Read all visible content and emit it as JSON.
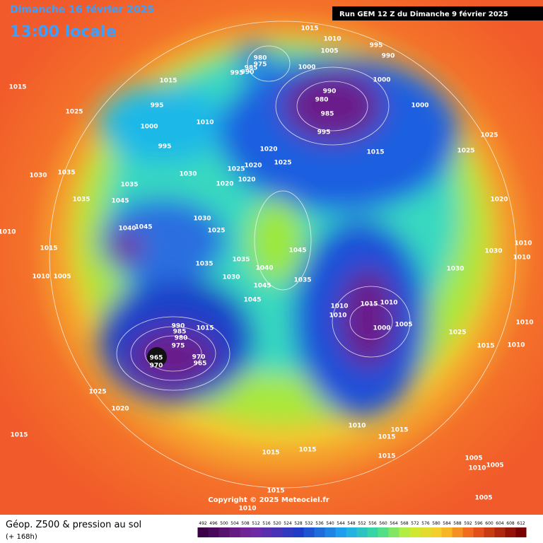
{
  "header": {
    "date": "Dimanche 16 février 2025",
    "time": "13:00 locale",
    "run": "Run GEM 12 Z du Dimanche 9 février 2025"
  },
  "footer": {
    "title": "Géop. Z500 & pression au sol",
    "lead": "(+ 168h)",
    "copyright": "Copyright © 2025 Meteociel.fr"
  },
  "scale": [
    492,
    496,
    500,
    504,
    508,
    512,
    516,
    520,
    524,
    528,
    532,
    536,
    540,
    544,
    548,
    552,
    556,
    560,
    564,
    568,
    572,
    576,
    580,
    584,
    588,
    592,
    596,
    600,
    604,
    608,
    612
  ],
  "isobar_labels": [
    1015,
    1010,
    1005,
    995,
    990,
    1015,
    1015,
    980,
    975,
    985,
    990,
    995,
    1000,
    1000,
    990,
    980,
    985,
    995,
    1000,
    1025,
    995,
    1000,
    1010,
    995,
    1025,
    1015,
    1025,
    1020,
    1025,
    1020,
    1025,
    1020,
    1030,
    1035,
    1030,
    1035,
    1020,
    1035,
    1045,
    1020,
    1030,
    1040,
    1045,
    1025,
    1010,
    1015,
    1010,
    1030,
    1045,
    1010,
    1035,
    1035,
    1040,
    1030,
    1010,
    1005,
    1030,
    1035,
    1045,
    1045,
    1010,
    1015,
    1010,
    1010,
    1005,
    1010,
    1000,
    990,
    985,
    1015,
    980,
    975,
    1025,
    970,
    965,
    970,
    965,
    1015,
    1010,
    1025,
    1020,
    1010,
    1015,
    1015,
    1015,
    1015,
    1015,
    1015,
    1005,
    1010,
    1005,
    1015,
    1010,
    1005
  ]
}
